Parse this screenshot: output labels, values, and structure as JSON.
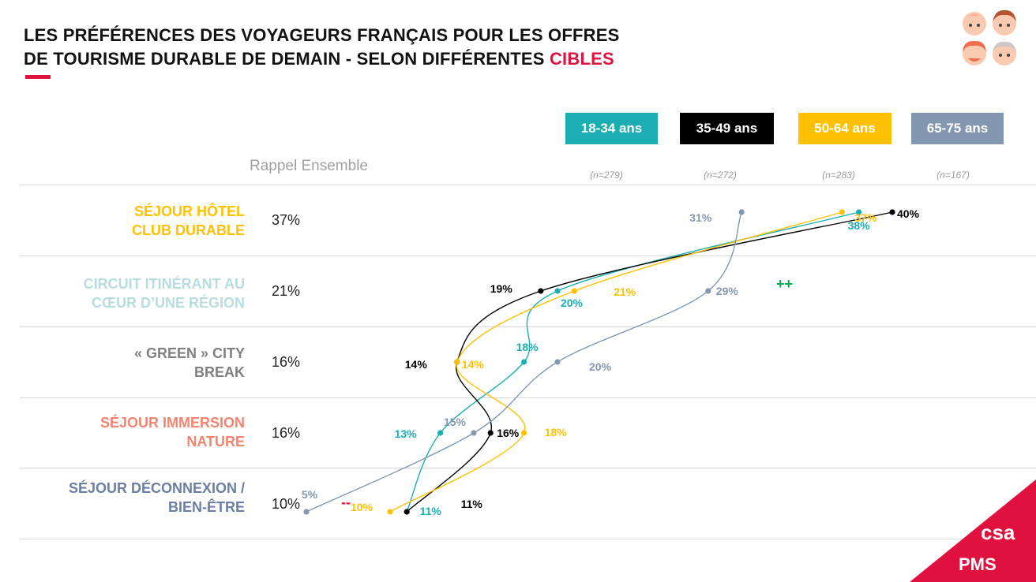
{
  "title": {
    "line1": "LES PRÉFÉRENCES DES VOYAGEURS FRANÇAIS POUR LES OFFRES",
    "line2_main": "DE TOURISME DURABLE DE DEMAIN - SELON DIFFÉRENTES ",
    "line2_accent": "CIBLES"
  },
  "rappel_label": "Rappel Ensemble",
  "colors": {
    "accent": "#e0103f",
    "s1": "#1aaeb2",
    "s2": "#000000",
    "s3": "#ffc000",
    "s4": "#8497b0",
    "plus": "#00a650",
    "minus": "#e0103f"
  },
  "brand": {
    "csa": "csa",
    "pms": "PMS"
  },
  "chart_data": {
    "type": "line",
    "orientation": "horizontal",
    "categories": [
      "SÉJOUR HÔTEL CLUB DURABLE",
      "CIRCUIT ITINÉRANT AU CŒUR D’UNE RÉGION",
      "« GREEN » CITY BREAK",
      "SÉJOUR IMMERSION NATURE",
      "SÉJOUR DÉCONNEXION / BIEN-ÊTRE"
    ],
    "category_lines": [
      [
        "SÉJOUR HÔTEL",
        "CLUB DURABLE"
      ],
      [
        "CIRCUIT ITINÉRANT AU",
        "CŒUR D’UNE RÉGION"
      ],
      [
        "« GREEN » CITY",
        "BREAK"
      ],
      [
        "SÉJOUR IMMERSION",
        "NATURE"
      ],
      [
        "SÉJOUR DÉCONNEXION /",
        "BIEN-ÊTRE"
      ]
    ],
    "category_colors": [
      "#ffc000",
      "#b7dde0",
      "#808080",
      "#f4846e",
      "#6b7fa3"
    ],
    "ensemble": [
      "37%",
      "21%",
      "16%",
      "16%",
      "10%"
    ],
    "series": [
      {
        "name": "18-34 ans",
        "n": "(n=279)",
        "color": "#1aaeb2",
        "values": [
          38,
          20,
          18,
          13,
          11
        ],
        "labels": [
          "38%",
          "20%",
          "18%",
          "13%",
          "11%"
        ]
      },
      {
        "name": "35-49 ans",
        "n": "(n=272)",
        "color": "#000000",
        "values": [
          40,
          19,
          14,
          16,
          11
        ],
        "labels": [
          "40%",
          "19%",
          "14%",
          "16%",
          "11%"
        ]
      },
      {
        "name": "50-64 ans",
        "n": "(n=283)",
        "color": "#ffc000",
        "values": [
          37,
          21,
          14,
          18,
          10
        ],
        "labels": [
          "37%",
          "21%",
          "14%",
          "18%",
          "10%"
        ]
      },
      {
        "name": "65-75 ans",
        "n": "(n=167)",
        "color": "#8497b0",
        "values": [
          31,
          29,
          20,
          15,
          5
        ],
        "labels": [
          "31%",
          "29%",
          "20%",
          "15%",
          "5%"
        ]
      }
    ],
    "significance": [
      {
        "category_index": 1,
        "series": "65-75 ans",
        "mark": "++"
      },
      {
        "category_index": 4,
        "series": "65-75 ans",
        "mark": "--"
      }
    ]
  }
}
